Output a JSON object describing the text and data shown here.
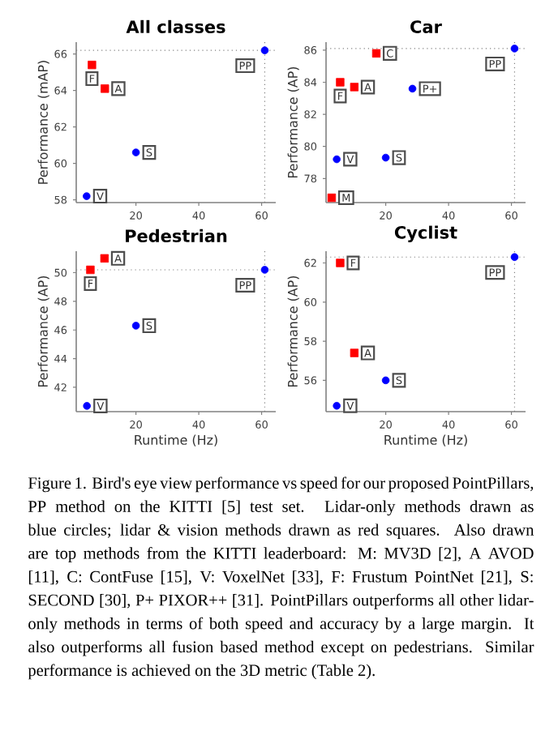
{
  "chart_data": [
    {
      "type": "scatter",
      "title": "All classes",
      "ylabel": "Performance (mAP)",
      "xlim": [
        1,
        64.5
      ],
      "xticks": [
        20,
        40,
        60
      ],
      "ylim": [
        57.85,
        66.65
      ],
      "yticks": [
        58,
        60,
        62,
        64,
        66
      ],
      "series": [
        {
          "color": "#0000ff",
          "marker": "circle",
          "x": [
            61,
            20,
            4.3
          ],
          "values": [
            66.2,
            60.6,
            58.2
          ]
        },
        {
          "color": "#ff0000",
          "marker": "square",
          "x": [
            6,
            10.1
          ],
          "values": [
            65.4,
            64.1
          ]
        }
      ],
      "ref_lines": [
        {
          "axis": "x",
          "value": 61,
          "color": "#808080",
          "line_style": "dotted"
        },
        {
          "axis": "y",
          "value": 66.2,
          "color": "#808080",
          "line_style": "dotted"
        }
      ],
      "annotations": [
        {
          "text": "PP",
          "x": 61,
          "y": 66.2
        },
        {
          "text": "S",
          "x": 20,
          "y": 60.6
        },
        {
          "text": "V",
          "x": 4.3,
          "y": 58.2
        },
        {
          "text": "F",
          "x": 6,
          "y": 65.4
        },
        {
          "text": "A",
          "x": 10.1,
          "y": 64.1
        }
      ]
    },
    {
      "type": "scatter",
      "title": "Car",
      "ylabel": "Performance (AP)",
      "xlim": [
        1,
        64.5
      ],
      "xticks": [
        20,
        40,
        60
      ],
      "ylim": [
        76.5,
        86.5
      ],
      "yticks": [
        78,
        80,
        82,
        84,
        86
      ],
      "series": [
        {
          "color": "#0000ff",
          "marker": "circle",
          "x": [
            61,
            28.5,
            20,
            4.4
          ],
          "values": [
            86.1,
            83.6,
            79.3,
            79.2
          ]
        },
        {
          "color": "#ff0000",
          "marker": "square",
          "x": [
            17,
            5.5,
            10,
            2.8
          ],
          "values": [
            85.8,
            84.0,
            83.7,
            76.8
          ]
        }
      ],
      "ref_lines": [
        {
          "axis": "x",
          "value": 61,
          "color": "#808080",
          "line_style": "dotted"
        },
        {
          "axis": "y",
          "value": 86.1,
          "color": "#808080",
          "line_style": "dotted"
        }
      ],
      "annotations": [
        {
          "text": "PP",
          "x": 61,
          "y": 86.1
        },
        {
          "text": "P+",
          "x": 28.5,
          "y": 83.6
        },
        {
          "text": "S",
          "x": 20,
          "y": 79.3
        },
        {
          "text": "V",
          "x": 4.4,
          "y": 79.2
        },
        {
          "text": "C",
          "x": 17,
          "y": 85.8
        },
        {
          "text": "F",
          "x": 5.5,
          "y": 84.0
        },
        {
          "text": "A",
          "x": 10,
          "y": 83.7
        },
        {
          "text": "M",
          "x": 2.8,
          "y": 76.8
        }
      ]
    },
    {
      "type": "scatter",
      "title": "Pedestrian",
      "xlabel": "Runtime (Hz)",
      "ylabel": "Performance (AP)",
      "xlim": [
        1,
        64.5
      ],
      "xticks": [
        20,
        40,
        60
      ],
      "ylim": [
        40.3,
        51.5
      ],
      "yticks": [
        42,
        44,
        46,
        48,
        50
      ],
      "series": [
        {
          "color": "#0000ff",
          "marker": "circle",
          "x": [
            61,
            20,
            4.4
          ],
          "values": [
            50.2,
            46.3,
            40.7
          ]
        },
        {
          "color": "#ff0000",
          "marker": "square",
          "x": [
            5.5,
            10
          ],
          "values": [
            50.2,
            51.0
          ]
        }
      ],
      "ref_lines": [
        {
          "axis": "x",
          "value": 61,
          "color": "#808080",
          "line_style": "dotted"
        },
        {
          "axis": "y",
          "value": 50.2,
          "color": "#808080",
          "line_style": "dotted"
        }
      ],
      "annotations": [
        {
          "text": "PP",
          "x": 61,
          "y": 50.2
        },
        {
          "text": "S",
          "x": 20,
          "y": 46.3
        },
        {
          "text": "V",
          "x": 4.4,
          "y": 40.7
        },
        {
          "text": "F",
          "x": 5.5,
          "y": 50.2
        },
        {
          "text": "A",
          "x": 10,
          "y": 51.0
        }
      ]
    },
    {
      "type": "scatter",
      "title": "Cyclist",
      "xlabel": "Runtime (Hz)",
      "ylabel": "Performance (AP)",
      "xlim": [
        1,
        64.5
      ],
      "xticks": [
        20,
        40,
        60
      ],
      "ylim": [
        54.4,
        62.6
      ],
      "yticks": [
        56,
        58,
        60,
        62
      ],
      "series": [
        {
          "color": "#0000ff",
          "marker": "circle",
          "x": [
            61,
            20,
            4.4
          ],
          "values": [
            62.3,
            56.0,
            54.7
          ]
        },
        {
          "color": "#ff0000",
          "marker": "square",
          "x": [
            5.5,
            10
          ],
          "values": [
            62.0,
            57.4
          ]
        }
      ],
      "ref_lines": [
        {
          "axis": "x",
          "value": 61,
          "color": "#808080",
          "line_style": "dotted"
        },
        {
          "axis": "y",
          "value": 62.3,
          "color": "#808080",
          "line_style": "dotted"
        }
      ],
      "annotations": [
        {
          "text": "PP",
          "x": 61,
          "y": 62.3
        },
        {
          "text": "S",
          "x": 20,
          "y": 56.0
        },
        {
          "text": "V",
          "x": 4.4,
          "y": 54.7
        },
        {
          "text": "F",
          "x": 5.5,
          "y": 62.0
        },
        {
          "text": "A",
          "x": 10,
          "y": 57.4
        },
        "Figure 1. Bird's eye view performance vs speed for our proposed PointPillars, PP method on the KITTI [5] test set. Lidar-only methods drawn as blue circles; lidar & vision methods drawn as red squares. Also drawn are top methods from the KITTI leaderboard: M: MV3D [2], A AVOD [11], C: ContFuse [15], V: VoxelNet [33], F: Frustum PointNet [21], S: SECOND [30], P+ PIXOR++ [31]. PointPillars outperforms all other lidar-only methods in terms of both speed and accuracy by a large margin. It also outperforms all fusion based method except on pedestrians. Similar performance is achieved on the 3D metric (Table 2)."
      ]
    }
  ]
}
